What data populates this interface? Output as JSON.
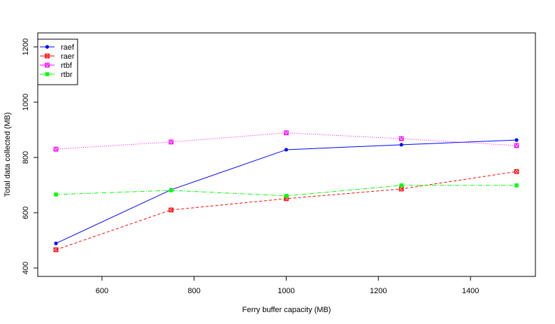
{
  "chart_data": {
    "type": "line",
    "title": "",
    "xlabel": "Ferry buffer capacity (MB)",
    "ylabel": "Total data collected (MB)",
    "x": [
      500,
      750,
      1000,
      1250,
      1500
    ],
    "xticks": [
      600,
      800,
      1000,
      1200,
      1400
    ],
    "yticks": [
      400,
      600,
      800,
      1000,
      1200
    ],
    "xlim": [
      460,
      1540
    ],
    "ylim": [
      365,
      1245
    ],
    "grid": false,
    "legend_position": "top-left",
    "series": [
      {
        "name": "raef",
        "color": "#0000ff",
        "dash": "",
        "marker": "circle",
        "values": [
          489,
          683,
          828,
          846,
          863
        ]
      },
      {
        "name": "raer",
        "color": "#ff0000",
        "dash": "4,3",
        "marker": "square-x",
        "values": [
          466,
          610,
          651,
          686,
          749
        ]
      },
      {
        "name": "rtbf",
        "color": "#ff00ff",
        "dash": "1,2",
        "marker": "square-triangle",
        "values": [
          830,
          856,
          889,
          868,
          843
        ]
      },
      {
        "name": "rtbr",
        "color": "#00ff00",
        "dash": "6,2,1,2",
        "marker": "filled-square",
        "values": [
          666,
          681,
          661,
          699,
          699
        ]
      }
    ]
  }
}
